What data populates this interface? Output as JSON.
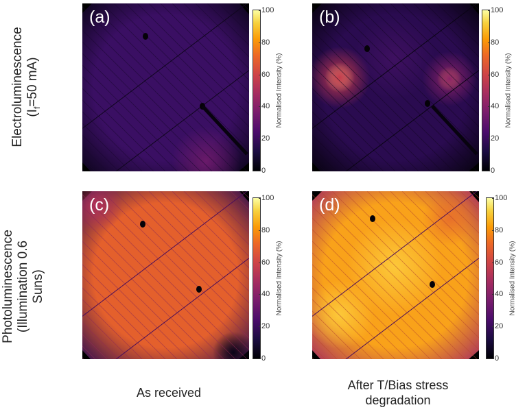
{
  "rows": [
    {
      "label_line1": "Electroluminescence",
      "label_line2_prefix": "(I",
      "label_line2_sub": "f",
      "label_line2_suffix": "=50 mA)"
    },
    {
      "label_line1": "Photoluminescence",
      "label_line2": "(Illumination 0.6",
      "label_line3": "Suns)"
    }
  ],
  "columns": [
    {
      "label": "As received"
    },
    {
      "label_line1": "After T/Bias stress",
      "label_line2": "degradation"
    }
  ],
  "panels": [
    {
      "id": "a",
      "label": "(a)",
      "mean_intensity_pct": 15
    },
    {
      "id": "b",
      "label": "(b)",
      "mean_intensity_pct": 20
    },
    {
      "id": "c",
      "label": "(c)",
      "mean_intensity_pct": 70
    },
    {
      "id": "d",
      "label": "(d)",
      "mean_intensity_pct": 82
    }
  ],
  "colorbar": {
    "label": "Normalised Intensity (%)",
    "colormap": "inferno",
    "ticks": [
      "0",
      "20",
      "40",
      "60",
      "80",
      "100"
    ],
    "range": [
      0,
      100
    ]
  }
}
